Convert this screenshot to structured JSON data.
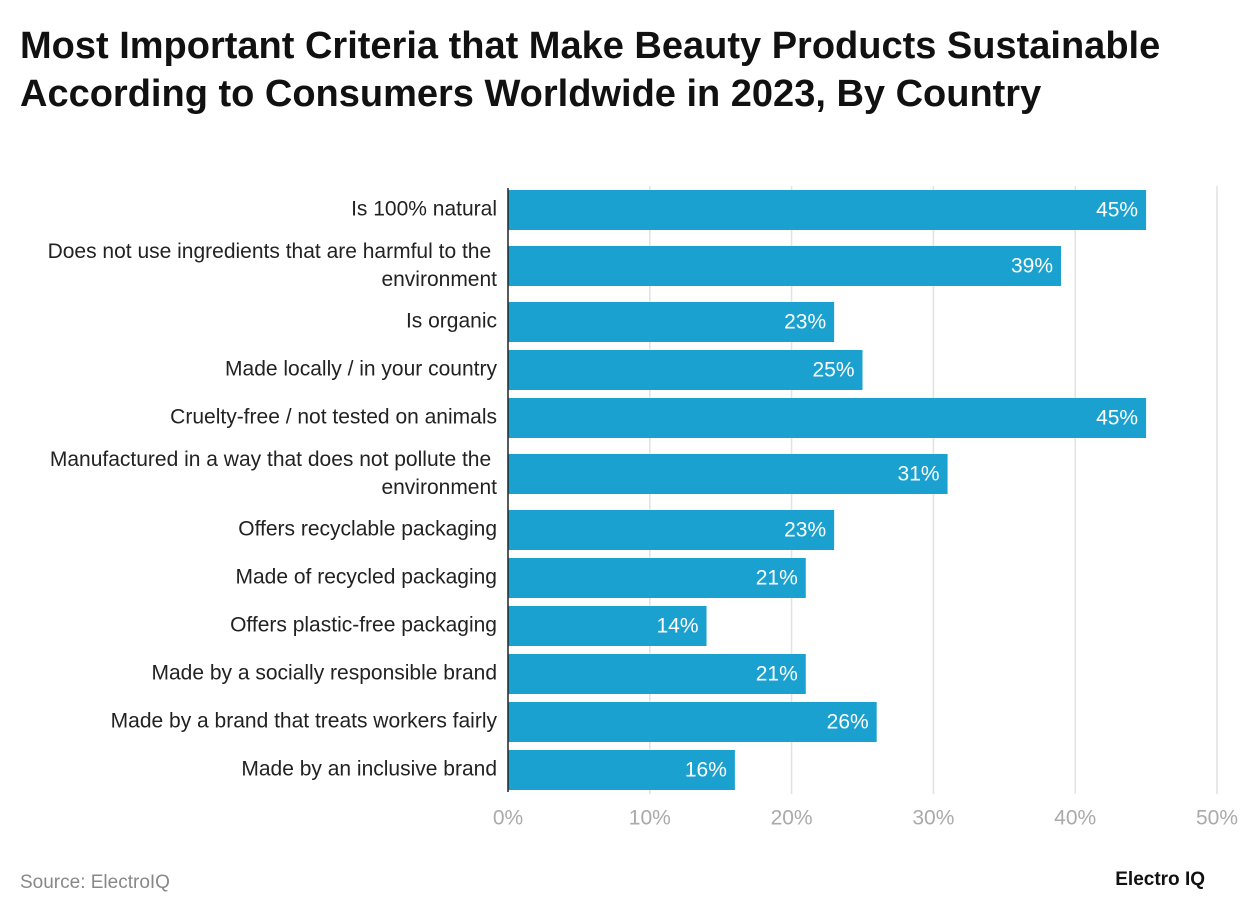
{
  "chart_data": {
    "type": "bar",
    "orientation": "horizontal",
    "title": "Most Important Criteria that Make Beauty Products Sustainable According to Consumers Worldwide in 2023, By Country",
    "categories": [
      "Is 100% natural",
      "Does not use ingredients that are harmful to the environment",
      "Is organic",
      "Made locally / in your country",
      "Cruelty-free / not tested on animals",
      "Manufactured in a way that does not pollute the environment",
      "Offers recyclable packaging",
      "Made of recycled packaging",
      "Offers plastic-free packaging",
      "Made by a socially responsible brand",
      "Made by a brand that treats workers fairly",
      "Made by an inclusive brand"
    ],
    "values": [
      45,
      39,
      23,
      25,
      45,
      31,
      23,
      21,
      14,
      21,
      26,
      16
    ],
    "value_labels": [
      "45%",
      "39%",
      "23%",
      "25%",
      "45%",
      "31%",
      "23%",
      "21%",
      "14%",
      "21%",
      "26%",
      "16%"
    ],
    "color": "#1ba1cf",
    "xlim": [
      0,
      50
    ],
    "xticks": [
      {
        "value": 0,
        "label": "0%"
      },
      {
        "value": 10,
        "label": "10%"
      },
      {
        "value": 20,
        "label": "20%"
      },
      {
        "value": 30,
        "label": "30%"
      },
      {
        "value": 40,
        "label": "40%"
      },
      {
        "value": 50,
        "label": "50%"
      }
    ],
    "grid": true,
    "source": "Source: ElectroIQ",
    "brand": "Electro IQ"
  }
}
